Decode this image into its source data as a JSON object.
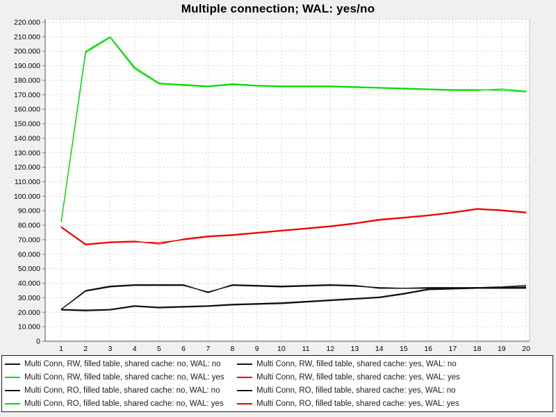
{
  "colors": {
    "background": "#f0f0f0",
    "plot_background": "#ffffff",
    "grid": "#d6d6d6",
    "axis": "#8a8a8a",
    "frame_light": "#c8c8c8",
    "tick_text": "#000000",
    "legend_border": "#1a1a1a",
    "legend_background": "#ffffff",
    "green": "#00dd00",
    "red": "#ee0000",
    "black": "#111111"
  },
  "chart_data": {
    "type": "line",
    "title": "Multiple connection; WAL: yes/no",
    "xlabel": "",
    "ylabel": "",
    "grid": true,
    "legend_position": "bottom",
    "xlim": [
      1,
      20
    ],
    "ylim": [
      0,
      220000
    ],
    "ytick_step": 10000,
    "x": [
      1,
      2,
      3,
      4,
      5,
      6,
      7,
      8,
      9,
      10,
      11,
      12,
      13,
      14,
      15,
      16,
      17,
      18,
      19,
      20
    ],
    "xtick_labels": [
      "1",
      "2",
      "3",
      "4",
      "5",
      "6",
      "7",
      "8",
      "9",
      "10",
      "11",
      "12",
      "13",
      "14",
      "15",
      "16",
      "17",
      "18",
      "19",
      "20"
    ],
    "ytick_labels": [
      "0",
      "10.000",
      "20.000",
      "30.000",
      "40.000",
      "50.000",
      "60.000",
      "70.000",
      "80.000",
      "90.000",
      "100.000",
      "110.000",
      "120.000",
      "130.000",
      "140.000",
      "150.000",
      "160.000",
      "170.000",
      "180.000",
      "190.000",
      "200.000",
      "210.000",
      "220.000"
    ],
    "series": [
      {
        "name": "Multi Conn, RW, filled table, shared cache: no, WAL: no",
        "color": "#111111",
        "values": [
          22000,
          35000,
          38000,
          39000,
          39000,
          39000,
          33500,
          39000,
          38500,
          38000,
          38500,
          39000,
          38500,
          36500,
          36500,
          37000,
          37000,
          37000,
          37500,
          38500
        ]
      },
      {
        "name": "Multi Conn, RW, filled table, shared cache: yes, WAL: no",
        "color": "#111111",
        "values": [
          22000,
          21500,
          22000,
          24500,
          23500,
          24000,
          24500,
          25500,
          26000,
          26500,
          27500,
          28500,
          29500,
          30500,
          33000,
          36000,
          36500,
          37000,
          37000,
          37000
        ]
      },
      {
        "name": "Multi Conn, RW, filled table, shared cache: no, WAL: yes",
        "color": "#00dd00",
        "values": [
          82000,
          200000,
          210000,
          189000,
          178000,
          177000,
          176000,
          177500,
          176500,
          176000,
          176000,
          176000,
          175500,
          175000,
          174500,
          174000,
          173500,
          173500,
          173000,
          172000
        ]
      },
      {
        "name": "Multi Conn, RW, filled table, shared cache: yes, WAL: yes",
        "color": "#ee0000",
        "values": [
          79000,
          67000,
          68500,
          69000,
          67000,
          70500,
          72500,
          73500,
          75000,
          76500,
          78000,
          79500,
          81500,
          84000,
          85500,
          87000,
          89000,
          91500,
          90500,
          89000
        ]
      },
      {
        "name": "Multi Conn, RO, filled table, shared cache: no, WAL: no",
        "color": "#111111",
        "values": [
          22000,
          34500,
          37500,
          38500,
          38500,
          38500,
          34000,
          38500,
          38000,
          37500,
          38000,
          38500,
          38000,
          37000,
          36500,
          36500,
          36500,
          37000,
          37000,
          37500
        ]
      },
      {
        "name": "Multi Conn, RO, filled table, shared cache: yes, WAL: no",
        "color": "#111111",
        "values": [
          21500,
          21000,
          21500,
          24000,
          23000,
          23500,
          24000,
          25000,
          25500,
          26000,
          27000,
          28000,
          29000,
          30000,
          32500,
          35500,
          36000,
          36500,
          36500,
          36500
        ]
      },
      {
        "name": "Multi Conn, RO, filled table, shared cache: no, WAL: yes",
        "color": "#00dd00",
        "values": [
          82000,
          199000,
          209500,
          188000,
          177500,
          176500,
          175500,
          177000,
          176000,
          175500,
          175500,
          175500,
          175000,
          174500,
          174000,
          173500,
          173000,
          173000,
          174000,
          172500
        ]
      },
      {
        "name": "Multi Conn, RO, filled table, shared cache: yes, WAL: yes",
        "color": "#ee0000",
        "values": [
          78500,
          66500,
          68000,
          68500,
          68000,
          70000,
          72000,
          73000,
          74500,
          76000,
          77500,
          79000,
          81000,
          83500,
          85000,
          86500,
          88500,
          91000,
          90000,
          88500
        ]
      }
    ]
  }
}
